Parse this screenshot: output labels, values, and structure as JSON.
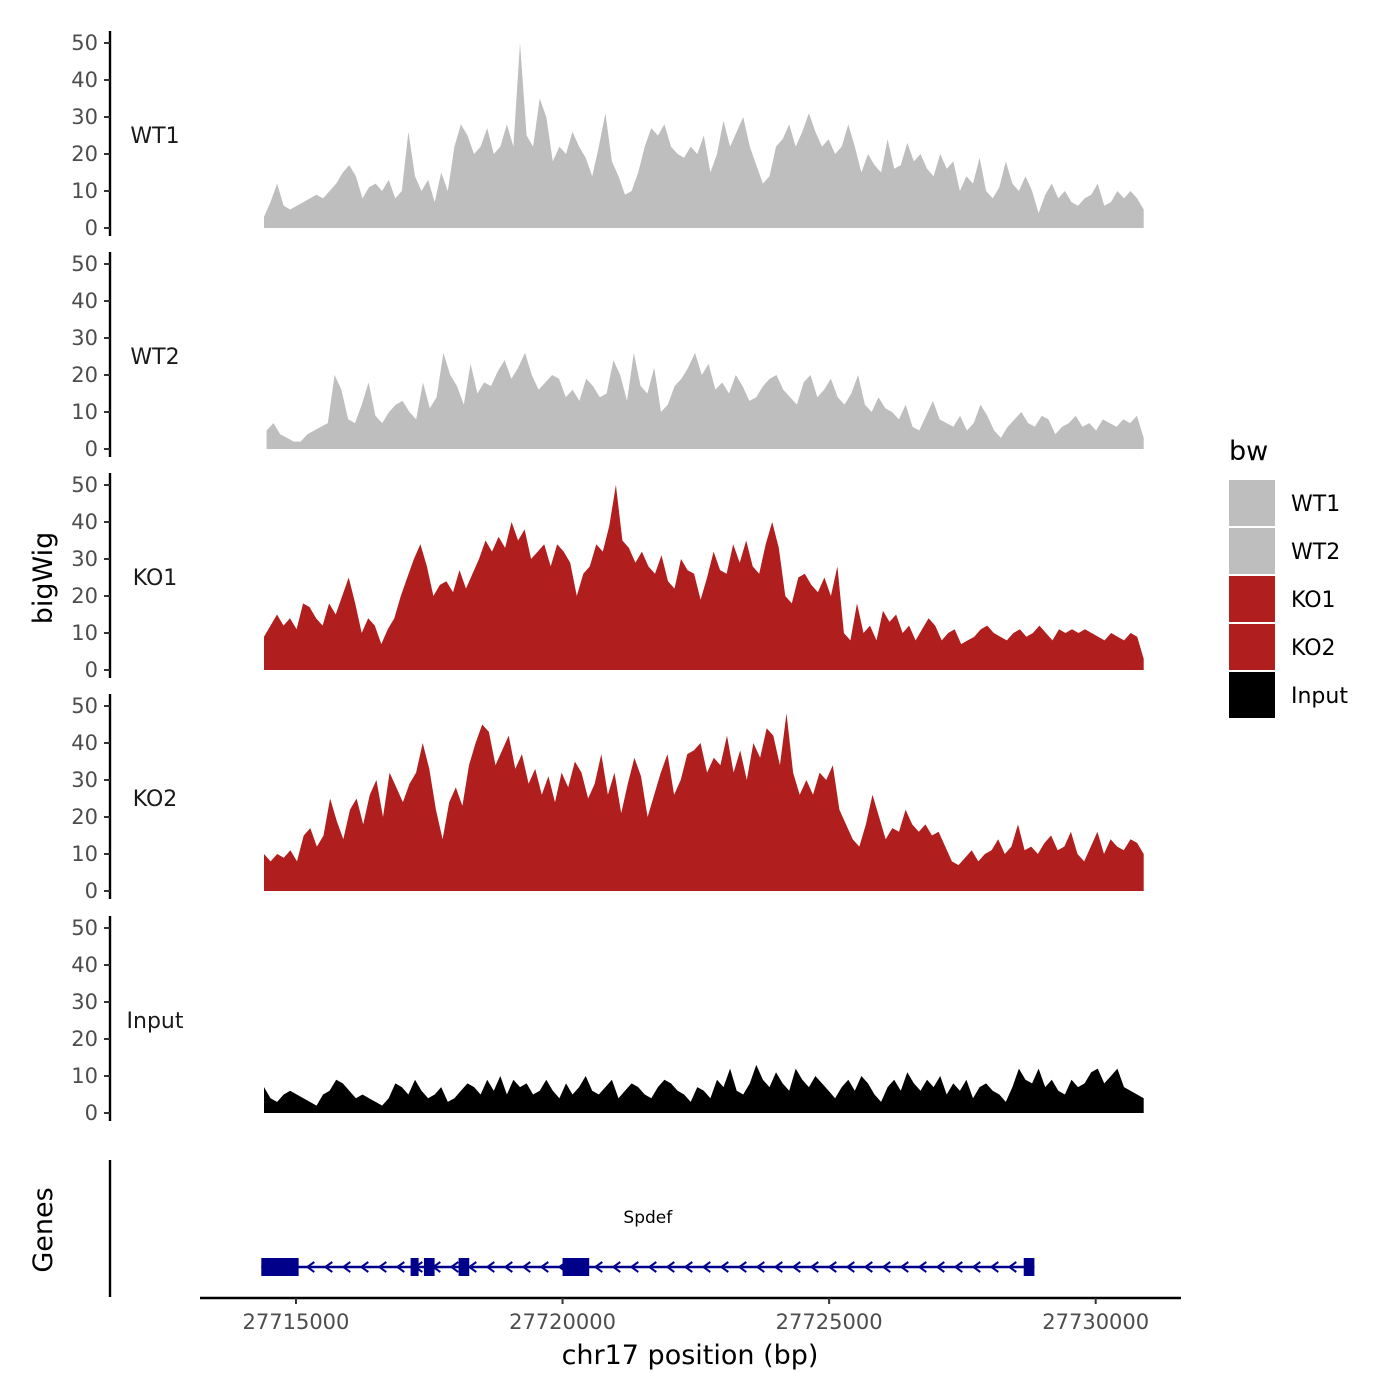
{
  "chart_data": {
    "type": "area",
    "chromosome": "chr17",
    "xlabel": "chr17 position (bp)",
    "ylabel": "bigWig",
    "gene_panel_label": "Genes",
    "xlim": [
      27713200,
      27731600
    ],
    "ylim": [
      0,
      50
    ],
    "x_ticks": [
      27715000,
      27720000,
      27725000,
      27730000
    ],
    "x_tick_labels": [
      "27715000",
      "27720000",
      "27725000",
      "27730000"
    ],
    "y_ticks": [
      0,
      10,
      20,
      30,
      40,
      50
    ],
    "y_tick_labels": [
      "0",
      "10",
      "20",
      "30",
      "40",
      "50"
    ],
    "legend": {
      "title": "bw",
      "position": "right"
    },
    "series": [
      {
        "name": "WT1",
        "color": "#bebebe",
        "x_start": 27714400,
        "x_end": 27730900,
        "values": [
          3,
          7,
          12,
          6,
          5,
          6,
          7,
          8,
          9,
          8,
          10,
          12,
          15,
          17,
          14,
          8,
          11,
          12,
          10,
          13,
          8,
          10,
          26,
          14,
          10,
          13,
          7,
          15,
          10,
          22,
          28,
          25,
          20,
          22,
          27,
          20,
          22,
          28,
          22,
          50,
          25,
          22,
          35,
          30,
          18,
          22,
          20,
          26,
          22,
          19,
          14,
          22,
          31,
          18,
          14,
          9,
          10,
          15,
          22,
          27,
          25,
          28,
          22,
          20,
          19,
          22,
          20,
          25,
          15,
          20,
          29,
          22,
          26,
          30,
          22,
          17,
          12,
          14,
          22,
          24,
          28,
          22,
          26,
          31,
          26,
          22,
          24,
          20,
          22,
          28,
          22,
          15,
          20,
          17,
          15,
          24,
          16,
          17,
          23,
          18,
          20,
          16,
          14,
          20,
          16,
          18,
          10,
          14,
          12,
          19,
          10,
          8,
          11,
          18,
          12,
          10,
          14,
          10,
          4,
          9,
          12,
          8,
          10,
          7,
          6,
          8,
          9,
          12,
          6,
          7,
          10,
          8,
          10,
          8,
          5
        ]
      },
      {
        "name": "WT2",
        "color": "#bebebe",
        "x_start": 27714450,
        "x_end": 27730900,
        "values": [
          5,
          7,
          4,
          3,
          2,
          2,
          4,
          5,
          6,
          7,
          20,
          16,
          8,
          7,
          12,
          18,
          9,
          7,
          10,
          12,
          13,
          10,
          8,
          18,
          11,
          14,
          26,
          20,
          17,
          12,
          23,
          15,
          18,
          17,
          21,
          24,
          19,
          22,
          26,
          20,
          16,
          18,
          20,
          19,
          14,
          16,
          13,
          19,
          17,
          14,
          15,
          24,
          20,
          13,
          26,
          17,
          15,
          22,
          10,
          12,
          17,
          19,
          22,
          26,
          20,
          23,
          16,
          18,
          15,
          20,
          17,
          13,
          14,
          17,
          19,
          20,
          16,
          14,
          12,
          18,
          20,
          14,
          16,
          19,
          14,
          12,
          15,
          20,
          12,
          10,
          14,
          11,
          10,
          8,
          12,
          6,
          5,
          9,
          13,
          8,
          7,
          6,
          9,
          5,
          7,
          12,
          9,
          5,
          3,
          6,
          8,
          10,
          7,
          6,
          9,
          8,
          4,
          6,
          7,
          9,
          6,
          7,
          5,
          8,
          7,
          6,
          8,
          7,
          9,
          3
        ]
      },
      {
        "name": "KO1",
        "color": "#b11e1e",
        "x_start": 27714400,
        "x_end": 27730900,
        "values": [
          9,
          12,
          15,
          12,
          14,
          11,
          18,
          17,
          14,
          12,
          18,
          15,
          20,
          25,
          18,
          10,
          14,
          12,
          7,
          11,
          14,
          20,
          25,
          30,
          34,
          28,
          20,
          23,
          24,
          21,
          27,
          22,
          26,
          30,
          35,
          32,
          36,
          33,
          40,
          35,
          38,
          30,
          32,
          34,
          28,
          34,
          32,
          29,
          20,
          26,
          28,
          34,
          32,
          39,
          50,
          35,
          33,
          29,
          32,
          28,
          26,
          31,
          24,
          22,
          30,
          27,
          26,
          19,
          25,
          32,
          27,
          26,
          34,
          29,
          35,
          28,
          26,
          34,
          40,
          33,
          20,
          18,
          25,
          26,
          23,
          21,
          25,
          20,
          28,
          10,
          8,
          18,
          10,
          12,
          8,
          16,
          13,
          15,
          10,
          12,
          8,
          11,
          14,
          12,
          8,
          10,
          11,
          7,
          8,
          9,
          11,
          12,
          10,
          9,
          8,
          10,
          11,
          9,
          10,
          12,
          10,
          8,
          11,
          10,
          11,
          10,
          11,
          10,
          9,
          8,
          10,
          9,
          8,
          10,
          9,
          3
        ]
      },
      {
        "name": "KO2",
        "color": "#b11e1e",
        "x_start": 27714400,
        "x_end": 27730900,
        "values": [
          10,
          8,
          10,
          9,
          11,
          8,
          15,
          17,
          12,
          15,
          25,
          19,
          14,
          22,
          25,
          18,
          26,
          30,
          20,
          32,
          28,
          24,
          29,
          32,
          40,
          33,
          22,
          14,
          24,
          28,
          23,
          34,
          40,
          45,
          43,
          34,
          38,
          42,
          33,
          37,
          29,
          33,
          26,
          31,
          24,
          32,
          28,
          35,
          32,
          25,
          29,
          37,
          26,
          32,
          21,
          29,
          36,
          31,
          20,
          26,
          32,
          37,
          26,
          30,
          37,
          38,
          40,
          32,
          36,
          34,
          42,
          32,
          38,
          30,
          40,
          36,
          44,
          42,
          34,
          48,
          32,
          26,
          30,
          26,
          32,
          30,
          34,
          22,
          18,
          14,
          12,
          18,
          26,
          20,
          14,
          17,
          16,
          22,
          18,
          16,
          18,
          15,
          16,
          12,
          8,
          7,
          9,
          11,
          8,
          10,
          11,
          14,
          10,
          12,
          18,
          11,
          12,
          10,
          13,
          15,
          11,
          12,
          16,
          10,
          8,
          12,
          16,
          10,
          14,
          12,
          11,
          14,
          13,
          10
        ]
      },
      {
        "name": "Input",
        "color": "#000000",
        "x_start": 27714400,
        "x_end": 27730900,
        "values": [
          7,
          4,
          3,
          5,
          6,
          5,
          4,
          3,
          2,
          5,
          6,
          9,
          8,
          6,
          4,
          5,
          4,
          3,
          2,
          4,
          8,
          7,
          5,
          9,
          6,
          4,
          5,
          7,
          3,
          4,
          6,
          8,
          7,
          5,
          9,
          6,
          10,
          5,
          9,
          7,
          8,
          5,
          6,
          9,
          6,
          4,
          8,
          5,
          7,
          10,
          6,
          5,
          7,
          9,
          4,
          6,
          8,
          7,
          5,
          4,
          7,
          9,
          8,
          6,
          5,
          3,
          7,
          6,
          4,
          9,
          7,
          12,
          6,
          5,
          8,
          13,
          9,
          7,
          11,
          8,
          6,
          12,
          9,
          7,
          10,
          8,
          6,
          4,
          7,
          9,
          6,
          10,
          8,
          5,
          3,
          7,
          9,
          6,
          11,
          8,
          6,
          9,
          7,
          10,
          5,
          8,
          6,
          9,
          4,
          7,
          8,
          6,
          5,
          3,
          7,
          12,
          9,
          8,
          12,
          7,
          9,
          6,
          5,
          9,
          7,
          8,
          11,
          12,
          8,
          10,
          12,
          7,
          6,
          5,
          4
        ]
      }
    ],
    "gene": {
      "name": "Spdef",
      "strand": "-",
      "start": 27714350,
      "end": 27728850,
      "exons": [
        [
          27714350,
          27715050
        ],
        [
          27717150,
          27717300
        ],
        [
          27717400,
          27717600
        ],
        [
          27718050,
          27718250
        ],
        [
          27720000,
          27720500
        ],
        [
          27728650,
          27728850
        ]
      ]
    }
  }
}
